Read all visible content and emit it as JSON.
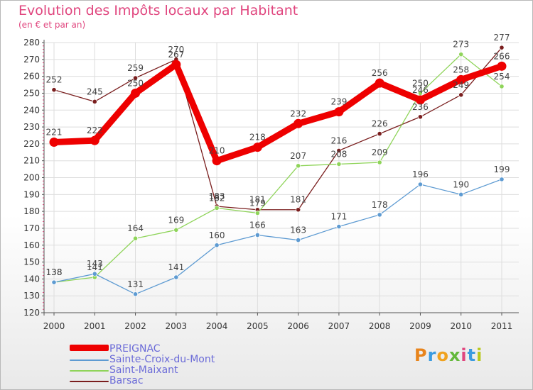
{
  "header": {
    "title": "Evolution des Impôts locaux par Habitant",
    "subtitle": "(en € et par an)"
  },
  "logo": {
    "letters": [
      "P",
      "r",
      "o",
      "x",
      "i",
      "t",
      "i"
    ],
    "colors": [
      "#e8841c",
      "#3b9be0",
      "#f0a21f",
      "#63b83a",
      "#e0457e",
      "#3b9be0",
      "#b8c81c"
    ]
  },
  "colors": {
    "title": "#e0457e",
    "grid": "#dddddd",
    "axis": "#555555",
    "tick_mark": "#cc3b6e",
    "legend_text": "#6b6bd8"
  },
  "chart_data": {
    "type": "line",
    "x": [
      "2000",
      "2001",
      "2002",
      "2003",
      "2004",
      "2005",
      "2006",
      "2007",
      "2008",
      "2009",
      "2010",
      "2011"
    ],
    "ylim": [
      120,
      280
    ],
    "yticks": [
      120,
      130,
      140,
      150,
      160,
      170,
      180,
      190,
      200,
      210,
      220,
      230,
      240,
      250,
      260,
      270,
      280
    ],
    "grid": true,
    "legend_position": "bottom-left",
    "series": [
      {
        "name": "PREIGNAC",
        "color": "#ee0000",
        "values": [
          221,
          222,
          250,
          267,
          210,
          218,
          232,
          239,
          256,
          246,
          258,
          266
        ],
        "labels": [
          "221",
          "222",
          "250",
          "267",
          "210",
          "218",
          "232",
          "239",
          "256",
          "246",
          "258",
          "266"
        ]
      },
      {
        "name": "Sainte-Croix-du-Mont",
        "color": "#5e9bd2",
        "values": [
          138,
          143,
          131,
          141,
          160,
          166,
          163,
          171,
          178,
          196,
          190,
          199
        ],
        "labels": [
          "138",
          "143",
          "131",
          "141",
          "160",
          "166",
          "163",
          "171",
          "178",
          "196",
          "190",
          "199"
        ]
      },
      {
        "name": "Saint-Maixant",
        "color": "#8fd45a",
        "values": [
          138,
          141,
          164,
          169,
          182,
          179,
          207,
          208,
          209,
          250,
          273,
          254
        ],
        "labels": [
          "138",
          "141",
          "164",
          "169",
          "182",
          "179",
          "207",
          "208",
          "209",
          "250",
          "273",
          "254"
        ]
      },
      {
        "name": "Barsac",
        "color": "#7a1e1e",
        "values": [
          252,
          245,
          259,
          270,
          183,
          181,
          181,
          216,
          226,
          236,
          249,
          277
        ],
        "labels": [
          "252",
          "245",
          "259",
          "270",
          "183",
          "181",
          "181",
          "216",
          "226",
          "236",
          "249",
          "277"
        ]
      }
    ]
  }
}
